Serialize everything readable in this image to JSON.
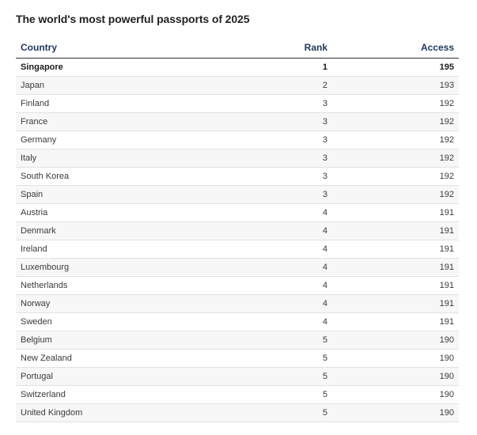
{
  "title": "The world's most powerful passports of 2025",
  "columns": {
    "country": "Country",
    "rank": "Rank",
    "access": "Access"
  },
  "rows": [
    {
      "country": "Singapore",
      "rank": "1",
      "access": "195"
    },
    {
      "country": "Japan",
      "rank": "2",
      "access": "193"
    },
    {
      "country": "Finland",
      "rank": "3",
      "access": "192"
    },
    {
      "country": "France",
      "rank": "3",
      "access": "192"
    },
    {
      "country": "Germany",
      "rank": "3",
      "access": "192"
    },
    {
      "country": "Italy",
      "rank": "3",
      "access": "192"
    },
    {
      "country": "South Korea",
      "rank": "3",
      "access": "192"
    },
    {
      "country": "Spain",
      "rank": "3",
      "access": "192"
    },
    {
      "country": "Austria",
      "rank": "4",
      "access": "191"
    },
    {
      "country": "Denmark",
      "rank": "4",
      "access": "191"
    },
    {
      "country": "Ireland",
      "rank": "4",
      "access": "191"
    },
    {
      "country": "Luxembourg",
      "rank": "4",
      "access": "191"
    },
    {
      "country": "Netherlands",
      "rank": "4",
      "access": "191"
    },
    {
      "country": "Norway",
      "rank": "4",
      "access": "191"
    },
    {
      "country": "Sweden",
      "rank": "4",
      "access": "191"
    },
    {
      "country": "Belgium",
      "rank": "5",
      "access": "190"
    },
    {
      "country": "New Zealand",
      "rank": "5",
      "access": "190"
    },
    {
      "country": "Portugal",
      "rank": "5",
      "access": "190"
    },
    {
      "country": "Switzerland",
      "rank": "5",
      "access": "190"
    },
    {
      "country": "United Kingdom",
      "rank": "5",
      "access": "190"
    }
  ],
  "colors": {
    "header_text": "#1f3a60",
    "stripe": "#f7f7f7",
    "row_border": "#e2e2e2"
  }
}
